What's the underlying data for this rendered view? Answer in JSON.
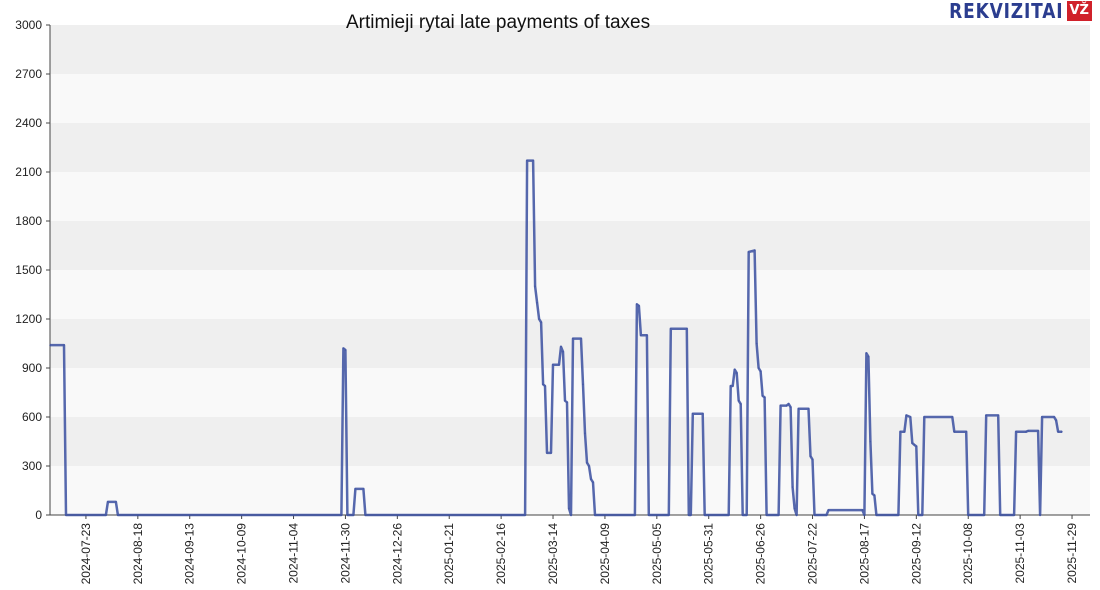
{
  "chart_data": {
    "type": "line",
    "title": "Artimieji rytai late payments of taxes",
    "xlabel": "",
    "ylabel": "",
    "ylim": [
      0,
      3000
    ],
    "y_ticks": [
      0,
      300,
      600,
      900,
      1200,
      1500,
      1800,
      2100,
      2400,
      2700,
      3000
    ],
    "x_range": [
      "2024-07-05",
      "2025-12-08"
    ],
    "x_ticks": [
      "2024-07-23",
      "2024-08-18",
      "2024-09-13",
      "2024-10-09",
      "2024-11-04",
      "2024-11-30",
      "2024-12-26",
      "2025-01-21",
      "2025-02-16",
      "2025-03-14",
      "2025-04-09",
      "2025-05-05",
      "2025-05-31",
      "2025-06-26",
      "2025-07-22",
      "2025-08-17",
      "2025-09-12",
      "2025-10-08",
      "2025-11-03",
      "2025-11-29"
    ],
    "grid": "horizontal bands",
    "series": [
      {
        "color": "#3a4fa0",
        "points": [
          [
            "2024-07-05",
            1040
          ],
          [
            "2024-07-12",
            1040
          ],
          [
            "2024-07-13",
            0
          ],
          [
            "2024-08-02",
            0
          ],
          [
            "2024-08-03",
            80
          ],
          [
            "2024-08-07",
            80
          ],
          [
            "2024-08-08",
            0
          ],
          [
            "2024-11-28",
            0
          ],
          [
            "2024-11-29",
            1020
          ],
          [
            "2024-11-30",
            1010
          ],
          [
            "2024-12-01",
            0
          ],
          [
            "2024-12-04",
            0
          ],
          [
            "2024-12-05",
            160
          ],
          [
            "2024-12-09",
            160
          ],
          [
            "2024-12-10",
            0
          ],
          [
            "2025-02-28",
            0
          ],
          [
            "2025-03-01",
            2170
          ],
          [
            "2025-03-04",
            2170
          ],
          [
            "2025-03-05",
            1400
          ],
          [
            "2025-03-06",
            1300
          ],
          [
            "2025-03-07",
            1200
          ],
          [
            "2025-03-08",
            1180
          ],
          [
            "2025-03-09",
            800
          ],
          [
            "2025-03-10",
            790
          ],
          [
            "2025-03-11",
            380
          ],
          [
            "2025-03-13",
            380
          ],
          [
            "2025-03-14",
            920
          ],
          [
            "2025-03-17",
            920
          ],
          [
            "2025-03-18",
            1030
          ],
          [
            "2025-03-19",
            1000
          ],
          [
            "2025-03-20",
            700
          ],
          [
            "2025-03-21",
            690
          ],
          [
            "2025-03-22",
            40
          ],
          [
            "2025-03-23",
            0
          ],
          [
            "2025-03-24",
            1080
          ],
          [
            "2025-03-28",
            1080
          ],
          [
            "2025-03-29",
            800
          ],
          [
            "2025-03-30",
            500
          ],
          [
            "2025-03-31",
            320
          ],
          [
            "2025-04-01",
            300
          ],
          [
            "2025-04-02",
            220
          ],
          [
            "2025-04-03",
            200
          ],
          [
            "2025-04-04",
            0
          ],
          [
            "2025-04-24",
            0
          ],
          [
            "2025-04-25",
            1290
          ],
          [
            "2025-04-26",
            1280
          ],
          [
            "2025-04-27",
            1100
          ],
          [
            "2025-04-30",
            1100
          ],
          [
            "2025-05-01",
            0
          ],
          [
            "2025-05-11",
            0
          ],
          [
            "2025-05-12",
            1140
          ],
          [
            "2025-05-20",
            1140
          ],
          [
            "2025-05-21",
            0
          ],
          [
            "2025-05-22",
            0
          ],
          [
            "2025-05-23",
            620
          ],
          [
            "2025-05-28",
            620
          ],
          [
            "2025-05-29",
            0
          ],
          [
            "2025-06-10",
            0
          ],
          [
            "2025-06-11",
            790
          ],
          [
            "2025-06-12",
            790
          ],
          [
            "2025-06-13",
            890
          ],
          [
            "2025-06-14",
            870
          ],
          [
            "2025-06-15",
            700
          ],
          [
            "2025-06-16",
            680
          ],
          [
            "2025-06-17",
            0
          ],
          [
            "2025-06-19",
            0
          ],
          [
            "2025-06-20",
            1610
          ],
          [
            "2025-06-23",
            1620
          ],
          [
            "2025-06-24",
            1050
          ],
          [
            "2025-06-25",
            900
          ],
          [
            "2025-06-26",
            880
          ],
          [
            "2025-06-27",
            730
          ],
          [
            "2025-06-28",
            720
          ],
          [
            "2025-06-29",
            0
          ],
          [
            "2025-07-05",
            0
          ],
          [
            "2025-07-06",
            670
          ],
          [
            "2025-07-09",
            670
          ],
          [
            "2025-07-10",
            680
          ],
          [
            "2025-07-11",
            660
          ],
          [
            "2025-07-12",
            170
          ],
          [
            "2025-07-13",
            40
          ],
          [
            "2025-07-14",
            0
          ],
          [
            "2025-07-15",
            650
          ],
          [
            "2025-07-20",
            650
          ],
          [
            "2025-07-21",
            360
          ],
          [
            "2025-07-22",
            340
          ],
          [
            "2025-07-23",
            0
          ],
          [
            "2025-07-29",
            0
          ],
          [
            "2025-07-30",
            30
          ],
          [
            "2025-08-16",
            30
          ],
          [
            "2025-08-17",
            0
          ],
          [
            "2025-08-18",
            990
          ],
          [
            "2025-08-19",
            970
          ],
          [
            "2025-08-20",
            450
          ],
          [
            "2025-08-21",
            130
          ],
          [
            "2025-08-22",
            120
          ],
          [
            "2025-08-23",
            0
          ],
          [
            "2025-09-03",
            0
          ],
          [
            "2025-09-04",
            510
          ],
          [
            "2025-09-06",
            510
          ],
          [
            "2025-09-07",
            610
          ],
          [
            "2025-09-09",
            600
          ],
          [
            "2025-09-10",
            440
          ],
          [
            "2025-09-11",
            430
          ],
          [
            "2025-09-12",
            420
          ],
          [
            "2025-09-13",
            0
          ],
          [
            "2025-09-15",
            0
          ],
          [
            "2025-09-16",
            600
          ],
          [
            "2025-09-30",
            600
          ],
          [
            "2025-10-01",
            510
          ],
          [
            "2025-10-07",
            510
          ],
          [
            "2025-10-08",
            0
          ],
          [
            "2025-10-16",
            0
          ],
          [
            "2025-10-17",
            610
          ],
          [
            "2025-10-23",
            610
          ],
          [
            "2025-10-24",
            0
          ],
          [
            "2025-10-31",
            0
          ],
          [
            "2025-11-01",
            510
          ],
          [
            "2025-11-06",
            510
          ],
          [
            "2025-11-07",
            515
          ],
          [
            "2025-11-12",
            515
          ],
          [
            "2025-11-13",
            0
          ],
          [
            "2025-11-14",
            600
          ],
          [
            "2025-11-20",
            600
          ],
          [
            "2025-11-21",
            580
          ],
          [
            "2025-11-22",
            510
          ],
          [
            "2025-11-24",
            510
          ]
        ]
      }
    ]
  },
  "logo": {
    "text": "REKVIZITAI",
    "badge": "VŽ"
  }
}
